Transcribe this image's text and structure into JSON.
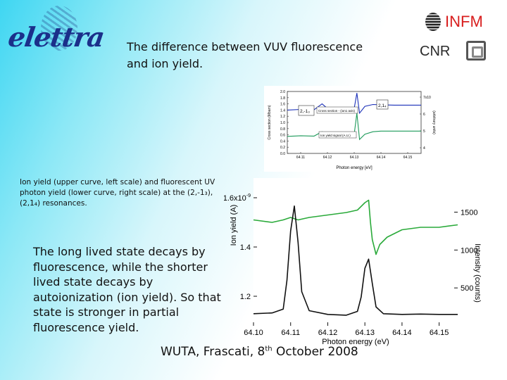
{
  "header": {
    "logo_text": "elettra",
    "title": "The difference between VUV fluorescence\n and ion yield.",
    "infm": "INFM",
    "cnr": "CNR"
  },
  "captions": {
    "resonance_caption": "Ion yield (upper curve, left scale) and fluorescent UV photon yield (lower curve, right scale) at the (2,-1₃), (2,1₄) resonances.",
    "body_text": "The long lived state decays by fluorescence, while the shorter lived state decays by autoionization (ion yield). So that state is stronger in partial fluorescence yield."
  },
  "footer": {
    "prefix": "WUTA, Frascati, 8",
    "sup": "th",
    "suffix": " October 2008"
  },
  "chart_data": [
    {
      "type": "line",
      "xlabel": "Photon energy [eV]",
      "ylabel": "Cross section (Mbarn)",
      "ylabel_right": "(arbitrary units)",
      "x_ticks": [
        "64.11",
        "64.12",
        "64.13",
        "64.14",
        "64.15"
      ],
      "y_ticks": [
        "0.0",
        "0.2",
        "0.4",
        "0.6",
        "0.8",
        "1.0",
        "1.2",
        "1.4",
        "1.6",
        "1.8",
        "2.0"
      ],
      "y_ticks_right": [
        "4",
        "5",
        "6",
        "7x10"
      ],
      "annotations": [
        "2,-1₃",
        "2,1₄",
        "Cross section - (ion1 axis)",
        "Ion yield signal (A.U.)"
      ],
      "series": [
        {
          "color": "#1a2fb8",
          "x": [
            64.105,
            64.11,
            64.115,
            64.118,
            64.12,
            64.122,
            64.125,
            64.128,
            64.13,
            64.131,
            64.132,
            64.134,
            64.137,
            64.14,
            64.145,
            64.15,
            64.155
          ],
          "y": [
            1.4,
            1.42,
            1.41,
            1.6,
            1.45,
            1.44,
            1.45,
            1.47,
            1.45,
            1.95,
            1.3,
            1.52,
            1.58,
            1.57,
            1.56,
            1.56,
            1.56
          ]
        },
        {
          "color": "#1d9a5a",
          "x": [
            64.105,
            64.11,
            64.115,
            64.118,
            64.12,
            64.122,
            64.125,
            64.128,
            64.13,
            64.131,
            64.132,
            64.134,
            64.137,
            64.14,
            64.145,
            64.15,
            64.155
          ],
          "y": [
            0.55,
            0.57,
            0.56,
            0.7,
            0.58,
            0.57,
            0.58,
            0.6,
            0.62,
            1.3,
            0.45,
            0.62,
            0.7,
            0.72,
            0.72,
            0.72,
            0.72
          ]
        }
      ],
      "xlim": [
        64.105,
        64.155
      ],
      "ylim": [
        0,
        2.0
      ]
    },
    {
      "type": "line",
      "xlabel": "Photon energy (eV)",
      "ylabel": "Ion yield (A)",
      "ylabel_right": "Intensity (counts)",
      "x_ticks": [
        "64.10",
        "64.11",
        "64.12",
        "64.13",
        "64.14",
        "64.15"
      ],
      "y_ticks": [
        "1.2",
        "1.4",
        "1.6x10"
      ],
      "y_ticks_sup": "-9",
      "y_ticks_right": [
        "500",
        "1000",
        "1500"
      ],
      "series": [
        {
          "name": "Ion yield",
          "axis": "left",
          "color": "#2aaa3a",
          "x": [
            64.1,
            64.105,
            64.108,
            64.11,
            64.112,
            64.115,
            64.12,
            64.125,
            64.128,
            64.13,
            64.131,
            64.1315,
            64.132,
            64.133,
            64.134,
            64.136,
            64.14,
            64.145,
            64.15,
            64.155
          ],
          "y": [
            1.51,
            1.5,
            1.51,
            1.52,
            1.51,
            1.52,
            1.53,
            1.54,
            1.55,
            1.58,
            1.59,
            1.5,
            1.43,
            1.37,
            1.41,
            1.44,
            1.47,
            1.48,
            1.48,
            1.49
          ]
        },
        {
          "name": "Fluorescence",
          "axis": "right",
          "color": "#111111",
          "x": [
            64.1,
            64.105,
            64.108,
            64.109,
            64.11,
            64.111,
            64.112,
            64.113,
            64.115,
            64.12,
            64.125,
            64.128,
            64.129,
            64.13,
            64.131,
            64.132,
            64.133,
            64.135,
            64.14,
            64.145,
            64.15,
            64.155
          ],
          "y": [
            160,
            170,
            220,
            600,
            1250,
            1580,
            1100,
            450,
            200,
            150,
            140,
            190,
            380,
            760,
            880,
            560,
            250,
            160,
            150,
            155,
            150,
            150
          ]
        }
      ],
      "xlim": [
        64.1,
        64.155
      ],
      "ylim_left": [
        1.08,
        1.68
      ],
      "ylim_right": [
        0,
        1950
      ]
    }
  ]
}
